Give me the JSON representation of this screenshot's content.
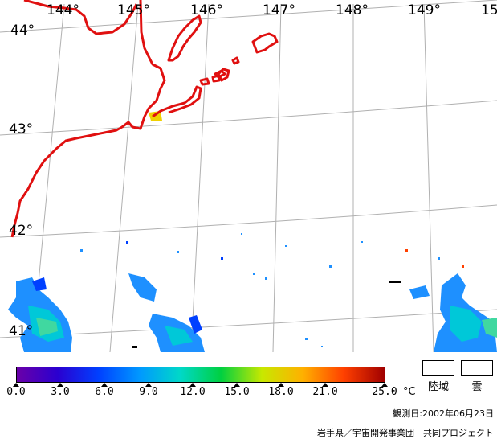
{
  "map": {
    "lon_labels": [
      "144°",
      "145°",
      "146°",
      "147°",
      "148°",
      "149°",
      "15"
    ],
    "lat_labels": [
      "44°",
      "43°",
      "42°",
      "41°"
    ],
    "coast_color": "#e01010",
    "grid_color": "#b0b0b0"
  },
  "scale": {
    "ticks": [
      "0.0",
      "3.0",
      "6.0",
      "9.0",
      "12.0",
      "15.0",
      "18.0",
      "21.0",
      "25.0"
    ],
    "unit": "°C",
    "colors": [
      "#6a00a8",
      "#2a00d0",
      "#0040ff",
      "#0098ff",
      "#00d8c8",
      "#00d040",
      "#c8e800",
      "#ffb000",
      "#ff4000",
      "#a00000"
    ]
  },
  "legend": {
    "land": "陸域",
    "cloud": "雲"
  },
  "footer": {
    "observation_date": "観測日:2002年06月23日",
    "credit": "岩手県／宇宙開発事業団　共同プロジェクト"
  }
}
